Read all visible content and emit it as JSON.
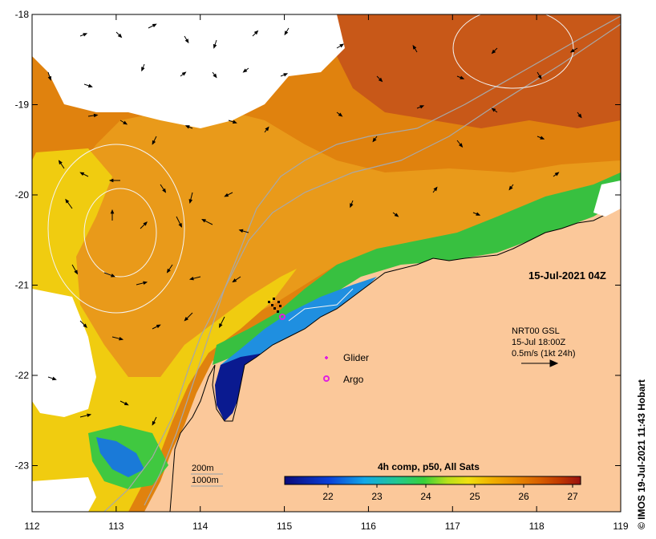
{
  "map": {
    "timestamp_label": "15-Jul-2021 04Z",
    "x_ticks": [
      "112",
      "113",
      "114",
      "115",
      "116",
      "117",
      "118",
      "119"
    ],
    "y_ticks": [
      "-18",
      "-19",
      "-20",
      "-21",
      "-22",
      "-23"
    ]
  },
  "legend": {
    "glider_label": "Glider",
    "argo_label": "Argo",
    "glider_color": "#e020e0",
    "argo_color": "#e020e0"
  },
  "current_info": {
    "line1": "NRT00 GSL",
    "line2": "15-Jul 18:00Z",
    "line3": "0.5m/s (1kt 24h)"
  },
  "isobaths": {
    "label_200": "200m",
    "label_1000": "1000m"
  },
  "colorbar": {
    "title": "4h comp, p50, All Sats",
    "ticks": [
      "22",
      "23",
      "24",
      "25",
      "26",
      "27"
    ],
    "colors": [
      "#0a0a7a",
      "#0a3fd8",
      "#12a8e8",
      "#22c890",
      "#38d03a",
      "#b8e01a",
      "#f0e010",
      "#f0b000",
      "#e88a00",
      "#d86000",
      "#c03800",
      "#9a1010"
    ]
  },
  "colors": {
    "land": "#fbc89a",
    "nodata": "#ffffff",
    "warm": "#e88a10",
    "hot": "#c85010",
    "yellow": "#f0d000",
    "green": "#30c040",
    "blue": "#1560e0",
    "deep_blue": "#0a1a90"
  },
  "credit": "IMOS 19-Jul-2021 11:43 Hobart",
  "copyright_symbol": "©"
}
